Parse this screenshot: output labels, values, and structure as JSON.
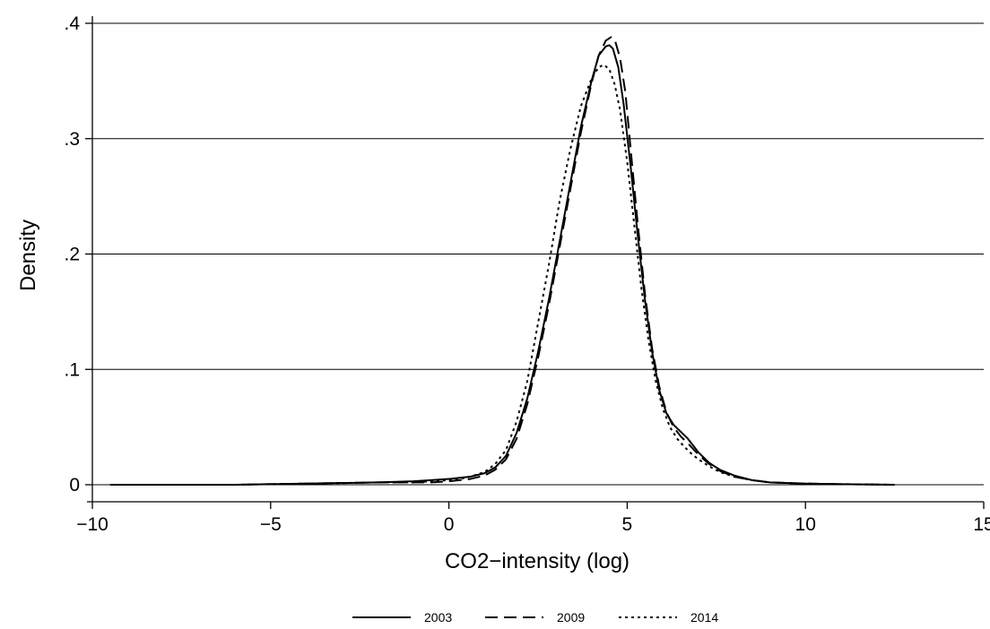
{
  "chart_data": {
    "type": "line",
    "title": "",
    "xlabel": "CO2−intensity (log)",
    "ylabel": "Density",
    "xlim": [
      -10,
      15
    ],
    "ylim": [
      0,
      0.4
    ],
    "x_ticks": [
      -10,
      -5,
      0,
      5,
      10,
      15
    ],
    "x_tick_labels": [
      "−10",
      "−5",
      "0",
      "5",
      "10",
      "15"
    ],
    "y_ticks": [
      0,
      0.1,
      0.2,
      0.3,
      0.4
    ],
    "y_tick_labels": [
      "0",
      ".1",
      ".2",
      ".3",
      ".4"
    ],
    "grid": "horizontal",
    "legend_position": "bottom",
    "series": [
      {
        "name": "2003",
        "line_style": "solid",
        "color": "#000000",
        "x": [
          -9.5,
          -8,
          -6,
          -4,
          -2,
          -1,
          -0.5,
          0,
          0.3,
          0.6,
          1,
          1.3,
          1.6,
          1.9,
          2.2,
          2.5,
          2.8,
          3.1,
          3.4,
          3.7,
          4.0,
          4.2,
          4.4,
          4.5,
          4.6,
          4.75,
          4.9,
          5.1,
          5.3,
          5.5,
          5.7,
          5.9,
          6.1,
          6.3,
          6.5,
          6.7,
          7.0,
          7.3,
          7.6,
          8.0,
          8.5,
          9.0,
          10,
          11,
          12.5
        ],
        "y": [
          0,
          0,
          0,
          0.001,
          0.002,
          0.003,
          0.004,
          0.005,
          0.006,
          0.007,
          0.01,
          0.015,
          0.025,
          0.045,
          0.075,
          0.115,
          0.16,
          0.21,
          0.26,
          0.31,
          0.35,
          0.372,
          0.38,
          0.381,
          0.378,
          0.362,
          0.33,
          0.275,
          0.215,
          0.16,
          0.115,
          0.082,
          0.062,
          0.052,
          0.046,
          0.04,
          0.028,
          0.019,
          0.013,
          0.008,
          0.004,
          0.002,
          0.001,
          0.0005,
          0
        ]
      },
      {
        "name": "2009",
        "line_style": "dashed",
        "color": "#000000",
        "x": [
          -9.5,
          -8,
          -6,
          -4,
          -2,
          -1,
          -0.5,
          0,
          0.3,
          0.6,
          1,
          1.3,
          1.6,
          1.9,
          2.2,
          2.5,
          2.8,
          3.1,
          3.4,
          3.7,
          4.0,
          4.2,
          4.4,
          4.55,
          4.65,
          4.8,
          4.95,
          5.1,
          5.3,
          5.5,
          5.7,
          5.9,
          6.1,
          6.3,
          6.5,
          6.7,
          7.0,
          7.3,
          7.6,
          8.0,
          8.5,
          9.0,
          10,
          11,
          12.5
        ],
        "y": [
          0,
          0,
          0,
          0.001,
          0.002,
          0.002,
          0.002,
          0.003,
          0.004,
          0.005,
          0.008,
          0.013,
          0.022,
          0.04,
          0.07,
          0.11,
          0.155,
          0.205,
          0.255,
          0.305,
          0.348,
          0.372,
          0.385,
          0.388,
          0.386,
          0.37,
          0.34,
          0.29,
          0.225,
          0.165,
          0.118,
          0.085,
          0.063,
          0.05,
          0.042,
          0.036,
          0.026,
          0.018,
          0.012,
          0.007,
          0.004,
          0.002,
          0.001,
          0.0005,
          0
        ]
      },
      {
        "name": "2014",
        "line_style": "dotted",
        "color": "#000000",
        "x": [
          -9.5,
          -8,
          -6,
          -4,
          -2,
          -1,
          -0.5,
          0,
          0.3,
          0.6,
          1,
          1.3,
          1.6,
          1.9,
          2.2,
          2.5,
          2.8,
          3.1,
          3.4,
          3.7,
          4.0,
          4.2,
          4.35,
          4.5,
          4.65,
          4.8,
          5.0,
          5.2,
          5.4,
          5.6,
          5.8,
          6.0,
          6.2,
          6.4,
          6.6,
          6.8,
          7.0,
          7.3,
          7.6,
          8.0,
          8.5,
          9.0,
          10,
          11,
          12.5
        ],
        "y": [
          0,
          0,
          0,
          0.001,
          0.002,
          0.002,
          0.003,
          0.004,
          0.005,
          0.007,
          0.011,
          0.018,
          0.03,
          0.055,
          0.09,
          0.14,
          0.19,
          0.245,
          0.29,
          0.328,
          0.352,
          0.362,
          0.364,
          0.36,
          0.347,
          0.325,
          0.28,
          0.225,
          0.17,
          0.125,
          0.09,
          0.066,
          0.05,
          0.04,
          0.033,
          0.027,
          0.022,
          0.016,
          0.011,
          0.007,
          0.004,
          0.002,
          0.001,
          0.0005,
          0
        ]
      }
    ]
  }
}
